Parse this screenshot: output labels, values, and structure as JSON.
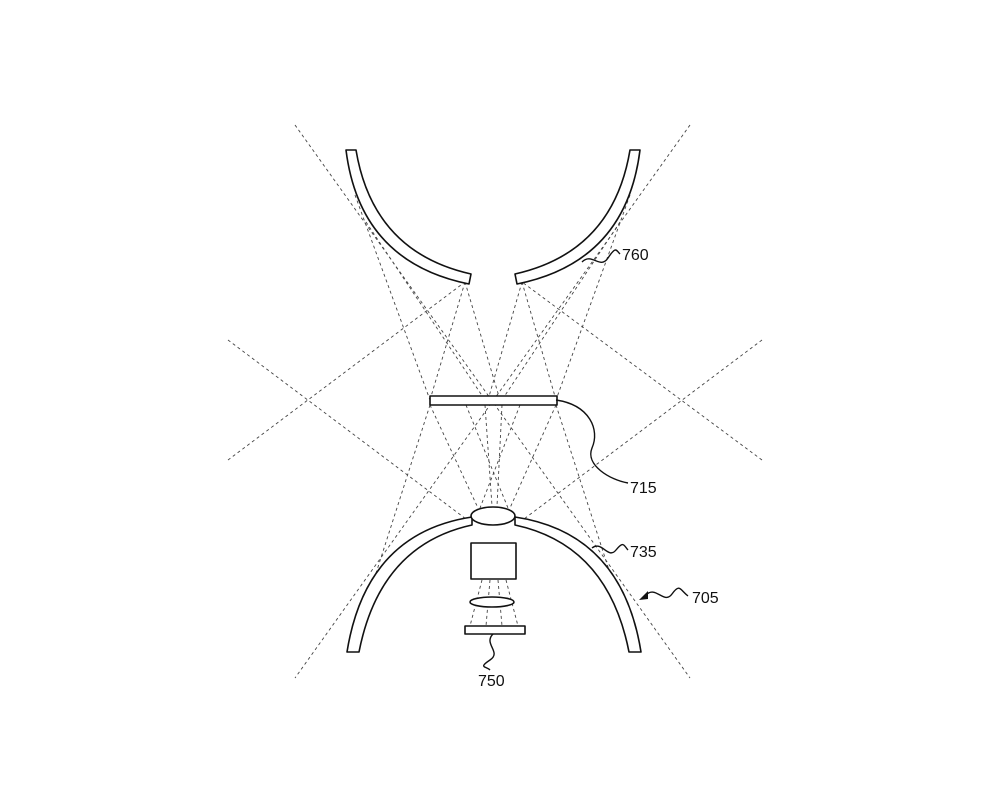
{
  "figure": {
    "labels": {
      "upper_reflector": "760",
      "window_plate": "715",
      "lower_reflector": "735",
      "assembly": "705",
      "sensor": "750"
    },
    "colors": {
      "line": "#111111",
      "ray": "#444444",
      "background": "#ffffff"
    }
  }
}
